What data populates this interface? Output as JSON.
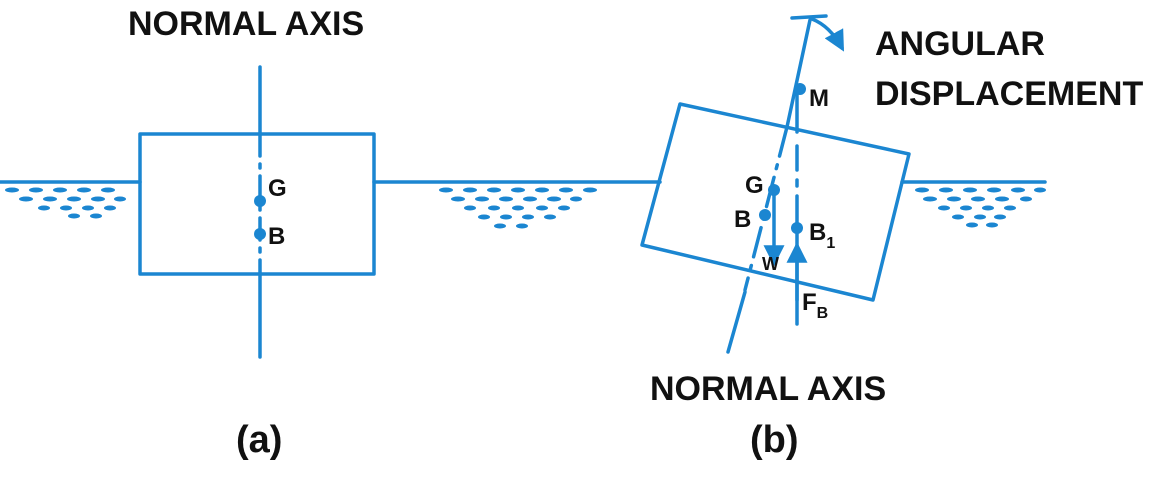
{
  "panel_a": {
    "title": "NORMAL AXIS",
    "point_g": "G",
    "point_b": "B",
    "caption": "(a)"
  },
  "panel_b": {
    "angular_line1": "ANGULAR",
    "angular_line2": "DISPLACEMENT",
    "point_m": "M",
    "point_g": "G",
    "point_b": "B",
    "point_b1": "B",
    "point_b1_sub": "1",
    "weight": "W",
    "buoyancy": "F",
    "buoyancy_sub": "B",
    "axis_label": "NORMAL AXIS",
    "caption": "(b)"
  },
  "colors": {
    "line": "#1b86d1",
    "text": "#111111",
    "background": "#ffffff"
  }
}
